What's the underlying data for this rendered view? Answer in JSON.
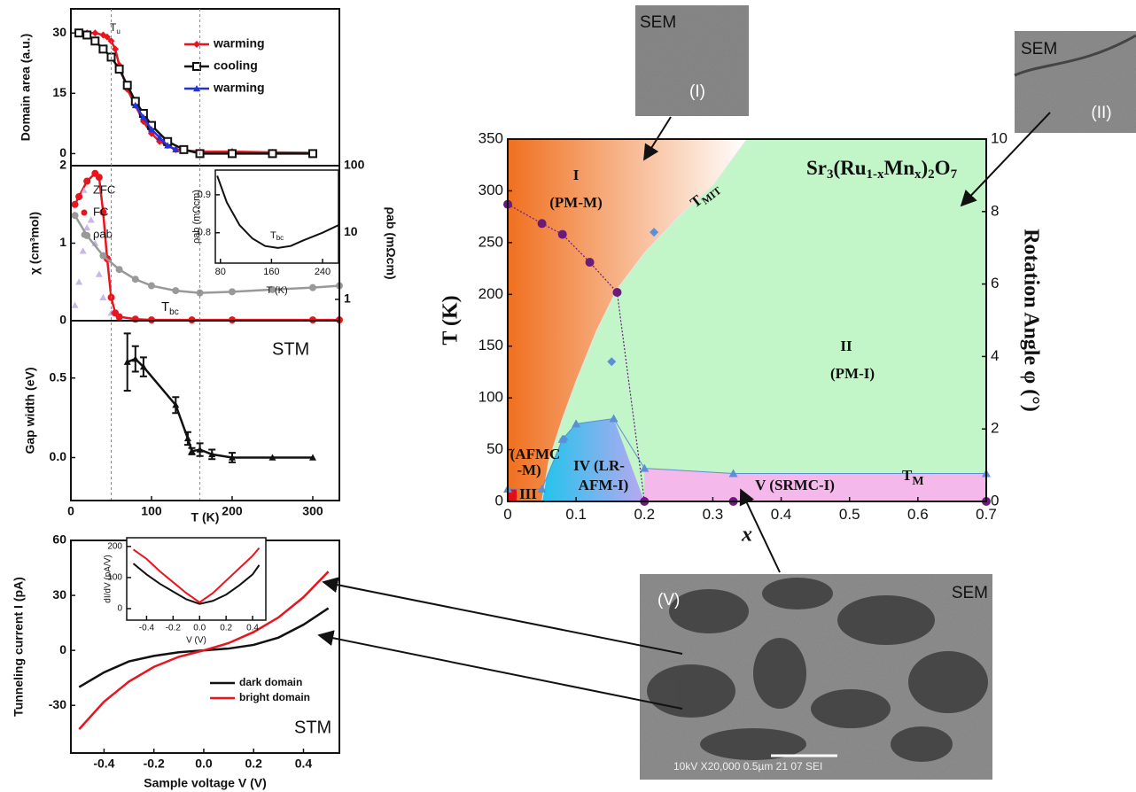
{
  "chart_data": [
    {
      "type": "line",
      "ylabel": "Domain area (a.u.)",
      "xlim": [
        0,
        333
      ],
      "ylim": [
        -3,
        36
      ],
      "yticks": [
        0,
        15,
        30
      ],
      "legend": true,
      "series": [
        {
          "name": "warming",
          "color": "#e8141e",
          "marker": "diamond",
          "x": [
            10,
            20,
            30,
            40,
            45,
            50,
            55,
            60,
            70,
            80,
            90,
            100,
            110,
            120,
            130,
            160,
            200,
            250,
            300
          ],
          "values": [
            30,
            30,
            30,
            29.5,
            29,
            28,
            26,
            22,
            16,
            12,
            8,
            5,
            3,
            2,
            1,
            0.5,
            0.5,
            0.3,
            0.2
          ]
        },
        {
          "name": "cooling",
          "color": "#111111",
          "marker": "square",
          "x": [
            10,
            20,
            30,
            40,
            50,
            60,
            70,
            80,
            90,
            100,
            120,
            140,
            160,
            200,
            250,
            300
          ],
          "values": [
            30,
            29.5,
            28,
            26,
            24,
            21,
            17,
            13,
            10,
            7,
            3,
            1,
            0,
            0,
            0,
            0
          ]
        },
        {
          "name": "warming",
          "color": "#2233dd",
          "marker": "triangle",
          "x": [
            80,
            90,
            100,
            110,
            120,
            130
          ],
          "values": [
            12,
            9,
            6,
            4,
            2,
            1
          ]
        }
      ],
      "annotations": [
        [
          "T",
          "u"
        ]
      ]
    },
    {
      "type": "line",
      "ylabel": "χ (cm³mol)",
      "y2label": "ρab (mΩcm)",
      "xlim": [
        0,
        333
      ],
      "ylim": [
        0,
        2
      ],
      "yticks": [
        0,
        1,
        2
      ],
      "y2lim": [
        0.48,
        100
      ],
      "y2ticks": [
        1,
        10,
        100
      ],
      "y2log": true,
      "legend": true,
      "series": [
        {
          "name": "ZFC",
          "color": "#c7b8e8",
          "marker": "triangle",
          "line": false,
          "x": [
            5,
            10,
            15,
            20,
            25,
            30,
            35,
            40,
            50,
            60,
            80
          ],
          "values": [
            0.2,
            0.5,
            0.9,
            1.2,
            1.3,
            1.0,
            0.6,
            0.3,
            0.1,
            0.05,
            0.02
          ]
        },
        {
          "name": "FC",
          "color": "#e8141e",
          "marker": "circle",
          "x": [
            5,
            10,
            20,
            30,
            35,
            40,
            45,
            50,
            55,
            60,
            80,
            100,
            150,
            200,
            300,
            333
          ],
          "values": [
            1.5,
            1.6,
            1.8,
            1.9,
            1.85,
            1.4,
            0.8,
            0.3,
            0.1,
            0.05,
            0.02,
            0.01,
            0.01,
            0.01,
            0.01,
            0.01
          ]
        },
        {
          "name": "ρab",
          "color": "#999999",
          "marker": "circle",
          "axis": "y2",
          "x": [
            5,
            20,
            40,
            60,
            80,
            100,
            130,
            160,
            200,
            250,
            300,
            333
          ],
          "values": [
            18,
            9,
            4.5,
            2.8,
            2,
            1.6,
            1.35,
            1.25,
            1.3,
            1.4,
            1.5,
            1.6
          ]
        }
      ],
      "annotations": [
        [
          "T",
          "bc"
        ]
      ]
    },
    {
      "type": "line",
      "ylabel": "ρab (mΩcm)",
      "xlabel": "T (K)",
      "xlim": [
        72,
        265
      ],
      "ylim": [
        0.72,
        0.965
      ],
      "xticks": [
        80,
        160,
        240
      ],
      "yticks": [
        0.8,
        0.9
      ],
      "series": [
        {
          "color": "#111111",
          "marker": "none",
          "x": [
            75,
            90,
            110,
            130,
            150,
            170,
            190,
            210,
            240,
            265
          ],
          "values": [
            0.95,
            0.88,
            0.82,
            0.785,
            0.765,
            0.76,
            0.765,
            0.78,
            0.8,
            0.82
          ]
        }
      ],
      "annotations": [
        [
          "T",
          "bc"
        ]
      ]
    },
    {
      "type": "line",
      "ylabel": "Gap width (eV)",
      "xlabel": "T (K)",
      "xlim": [
        0,
        333
      ],
      "ylim": [
        -0.27,
        0.86
      ],
      "xticks": [
        0,
        100,
        200,
        300
      ],
      "yticks": [
        {
          "value": 0,
          "label": "0.0"
        },
        0.5
      ],
      "guides": [
        50,
        160
      ],
      "series": [
        {
          "color": "#111111",
          "marker": "triangle",
          "x": [
            70,
            80,
            90,
            130,
            145,
            150,
            160,
            175,
            200,
            250,
            300
          ],
          "values": [
            0.6,
            0.62,
            0.57,
            0.33,
            0.12,
            0.04,
            0.05,
            0.02,
            0.0,
            0.0,
            0.0
          ],
          "errors": [
            0.18,
            0.08,
            0.06,
            0.05,
            0.04,
            0.02,
            0.04,
            0.03,
            0.03,
            null,
            null
          ]
        }
      ],
      "annotations": [
        "STM"
      ]
    },
    {
      "type": "line",
      "ylabel": "Tunneling current I (pA)",
      "xlabel": "Sample voltage V (V)",
      "xlim": [
        -0.533,
        0.544
      ],
      "ylim": [
        -56,
        60
      ],
      "xticks": [
        -0.4,
        -0.2,
        {
          "value": 0,
          "label": "0.0"
        },
        0.2,
        0.4
      ],
      "yticks": [
        -30,
        0,
        30,
        60
      ],
      "legend": true,
      "series": [
        {
          "name": "dark domain",
          "color": "#111111",
          "marker": "none",
          "x": [
            -0.5,
            -0.4,
            -0.3,
            -0.2,
            -0.1,
            0,
            0.1,
            0.2,
            0.3,
            0.4,
            0.5
          ],
          "values": [
            -20,
            -12,
            -6,
            -3,
            -1,
            0,
            1,
            3,
            7,
            14,
            23
          ]
        },
        {
          "name": "bright domain",
          "color": "#e8141e",
          "marker": "none",
          "x": [
            -0.5,
            -0.4,
            -0.3,
            -0.2,
            -0.1,
            0,
            0.1,
            0.2,
            0.3,
            0.4,
            0.5
          ],
          "values": [
            -43,
            -28,
            -17,
            -9,
            -3.5,
            0,
            4,
            10,
            18,
            29,
            43
          ]
        }
      ],
      "annotations": [
        "STM"
      ]
    },
    {
      "type": "line",
      "ylabel": "dI/dV (pA/V)",
      "xlabel": "V (V)",
      "xlim": [
        -0.55,
        0.5
      ],
      "ylim": [
        -37,
        228
      ],
      "xticks": [
        -0.4,
        -0.2,
        {
          "value": 0,
          "label": "0.0"
        },
        0.2,
        0.4
      ],
      "yticks": [
        0,
        100,
        200
      ],
      "series": [
        {
          "color": "#111111",
          "marker": "none",
          "x": [
            -0.5,
            -0.4,
            -0.3,
            -0.2,
            -0.1,
            0,
            0.1,
            0.2,
            0.3,
            0.4,
            0.45
          ],
          "values": [
            145,
            110,
            80,
            55,
            30,
            15,
            25,
            45,
            75,
            110,
            140
          ]
        },
        {
          "color": "#e8141e",
          "marker": "none",
          "x": [
            -0.5,
            -0.4,
            -0.3,
            -0.2,
            -0.1,
            0,
            0.1,
            0.2,
            0.3,
            0.4,
            0.45
          ],
          "values": [
            190,
            160,
            120,
            85,
            50,
            20,
            50,
            90,
            130,
            170,
            195
          ]
        }
      ]
    },
    {
      "type": "line",
      "title_parts": [
        "Sr",
        "3",
        "(Ru",
        "1-x",
        "Mn",
        "x",
        ")",
        "2",
        "O",
        "7"
      ],
      "ylabel": "T (K)",
      "xlabel": "x",
      "y2label": "Rotation Angle φ (°)",
      "xlim": [
        0,
        0.7
      ],
      "ylim": [
        0,
        350
      ],
      "y2lim": [
        0,
        10
      ],
      "xticks": [
        0,
        0.1,
        0.2,
        0.3,
        0.4,
        0.5,
        0.6,
        0.7
      ],
      "yticks": [
        0,
        50,
        100,
        150,
        200,
        250,
        300,
        350
      ],
      "y2ticks": [
        0,
        2,
        4,
        6,
        8,
        10
      ],
      "region_colors": {
        "I": "#f07020",
        "II": "#c2f5c8",
        "III": "#e0101a",
        "IV": "#22c4ec",
        "V": "#f5b8ea"
      },
      "boundary": {
        "x": [
          0.05,
          0.06,
          0.08,
          0.1,
          0.13,
          0.16,
          0.2,
          0.25,
          0.3,
          0.35
        ],
        "values": [
          0,
          39,
          80,
          116,
          165,
          205,
          240,
          275,
          305,
          350
        ]
      },
      "series": [
        {
          "color": "#5b8fd6",
          "marker": "triangle",
          "x": [
            0,
            0.05,
            0.08,
            0.1,
            0.155,
            0.2,
            0.33,
            0.7
          ],
          "values": [
            12,
            12,
            60,
            75,
            80,
            32,
            27,
            27
          ]
        },
        {
          "color": "#5b8fd6",
          "marker": "diamond",
          "line": false,
          "x": [
            0.082,
            0.152,
            0.214
          ],
          "values": [
            60,
            135,
            260
          ]
        },
        {
          "color": "#6a1b7a",
          "marker": "circle",
          "axis": "y2",
          "dash": true,
          "x": [
            0,
            0.05,
            0.08,
            0.12,
            0.16,
            0.2,
            0.33,
            0.7
          ],
          "values": [
            8.2,
            7.67,
            7.37,
            6.6,
            5.77,
            0,
            0,
            0
          ]
        }
      ],
      "annotations": [
        "I",
        "(PM-M)",
        "II",
        "(PM-I)",
        "(AFMC",
        "-M)",
        "III",
        "IV (LR-",
        "AFM-I)",
        "V (SRMC-I)",
        [
          "T",
          "MIT"
        ],
        [
          "T",
          "M"
        ]
      ]
    }
  ],
  "images": [
    {
      "label": "SEM",
      "tag": "(I)"
    },
    {
      "label": "SEM",
      "tag": "(II)"
    },
    {
      "label": "SEM",
      "tag": "(V)",
      "footer": "10kV  X20,000  0.5µm        21 07 SEI"
    }
  ]
}
